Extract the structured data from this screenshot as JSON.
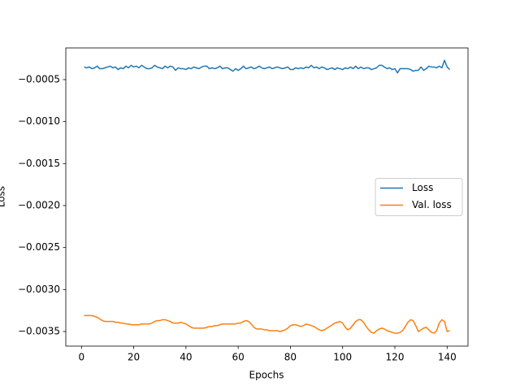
{
  "chart_data": {
    "type": "line",
    "xlabel": "Epochs",
    "ylabel": "Loss",
    "x": [
      1,
      2,
      3,
      4,
      5,
      6,
      7,
      8,
      9,
      10,
      11,
      12,
      13,
      14,
      15,
      16,
      17,
      18,
      19,
      20,
      21,
      22,
      23,
      24,
      25,
      26,
      27,
      28,
      29,
      30,
      31,
      32,
      33,
      34,
      35,
      36,
      37,
      38,
      39,
      40,
      41,
      42,
      43,
      44,
      45,
      46,
      47,
      48,
      49,
      50,
      51,
      52,
      53,
      54,
      55,
      56,
      57,
      58,
      59,
      60,
      61,
      62,
      63,
      64,
      65,
      66,
      67,
      68,
      69,
      70,
      71,
      72,
      73,
      74,
      75,
      76,
      77,
      78,
      79,
      80,
      81,
      82,
      83,
      84,
      85,
      86,
      87,
      88,
      89,
      90,
      91,
      92,
      93,
      94,
      95,
      96,
      97,
      98,
      99,
      100,
      101,
      102,
      103,
      104,
      105,
      106,
      107,
      108,
      109,
      110,
      111,
      112,
      113,
      114,
      115,
      116,
      117,
      118,
      119,
      120,
      121,
      122,
      123,
      124,
      125,
      126,
      127,
      128,
      129,
      130,
      131,
      132,
      133,
      134,
      135,
      136,
      137,
      138,
      139,
      140,
      141
    ],
    "series": [
      {
        "name": "Loss",
        "color": "#1f77b4",
        "values": [
          -0.00035,
          -0.00036,
          -0.00035,
          -0.00037,
          -0.00036,
          -0.00034,
          -0.00037,
          -0.00037,
          -0.00036,
          -0.00035,
          -0.00034,
          -0.00036,
          -0.00035,
          -0.00038,
          -0.00036,
          -0.00037,
          -0.00034,
          -0.00036,
          -0.00033,
          -0.00035,
          -0.00034,
          -0.00036,
          -0.00033,
          -0.00035,
          -0.00037,
          -0.00037,
          -0.00036,
          -0.00033,
          -0.00035,
          -0.00036,
          -0.00037,
          -0.00034,
          -0.00036,
          -0.00034,
          -0.00035,
          -0.00039,
          -0.00036,
          -0.00037,
          -0.00037,
          -0.00038,
          -0.00036,
          -0.00037,
          -0.00035,
          -0.00036,
          -0.00037,
          -0.00035,
          -0.00034,
          -0.00034,
          -0.00037,
          -0.00036,
          -0.00037,
          -0.00036,
          -0.00034,
          -0.00037,
          -0.00036,
          -0.00036,
          -0.00038,
          -0.0004,
          -0.00037,
          -0.00039,
          -0.00037,
          -0.00034,
          -0.00037,
          -0.00036,
          -0.00035,
          -0.00037,
          -0.00036,
          -0.00034,
          -0.00036,
          -0.00037,
          -0.00036,
          -0.00035,
          -0.00037,
          -0.00036,
          -0.00035,
          -0.00036,
          -0.00037,
          -0.00036,
          -0.00035,
          -0.00038,
          -0.00038,
          -0.00036,
          -0.00037,
          -0.00036,
          -0.00037,
          -0.00035,
          -0.00036,
          -0.00033,
          -0.00036,
          -0.00035,
          -0.00037,
          -0.00035,
          -0.00036,
          -0.00038,
          -0.00037,
          -0.00036,
          -0.00038,
          -0.00036,
          -0.00037,
          -0.00038,
          -0.00036,
          -0.00037,
          -0.00035,
          -0.00037,
          -0.00034,
          -0.00037,
          -0.00035,
          -0.00037,
          -0.00036,
          -0.00036,
          -0.00038,
          -0.00037,
          -0.00036,
          -0.00033,
          -0.00033,
          -0.00035,
          -0.00037,
          -0.00036,
          -0.00038,
          -0.00037,
          -0.00042,
          -0.00037,
          -0.00037,
          -0.00037,
          -0.00037,
          -0.00038,
          -0.0004,
          -0.00039,
          -0.00039,
          -0.00035,
          -0.00039,
          -0.00037,
          -0.00034,
          -0.00035,
          -0.00035,
          -0.00036,
          -0.00034,
          -0.00036,
          -0.00027,
          -0.00035,
          -0.00038
        ]
      },
      {
        "name": "Val. loss",
        "color": "#ff7f0e",
        "values": [
          -0.00331,
          -0.00331,
          -0.00331,
          -0.00331,
          -0.00332,
          -0.00333,
          -0.00335,
          -0.00337,
          -0.00338,
          -0.00338,
          -0.00338,
          -0.00338,
          -0.00339,
          -0.00339,
          -0.0034,
          -0.0034,
          -0.00341,
          -0.00341,
          -0.00342,
          -0.00342,
          -0.00342,
          -0.00342,
          -0.00341,
          -0.00341,
          -0.00341,
          -0.00341,
          -0.0034,
          -0.00338,
          -0.00337,
          -0.00337,
          -0.00336,
          -0.00336,
          -0.00337,
          -0.00338,
          -0.0034,
          -0.0034,
          -0.0034,
          -0.00339,
          -0.0034,
          -0.00341,
          -0.00343,
          -0.00345,
          -0.00346,
          -0.00346,
          -0.00346,
          -0.00346,
          -0.00346,
          -0.00345,
          -0.00344,
          -0.00344,
          -0.00343,
          -0.00343,
          -0.00342,
          -0.00341,
          -0.00341,
          -0.00341,
          -0.00341,
          -0.00341,
          -0.00341,
          -0.0034,
          -0.0034,
          -0.00338,
          -0.00337,
          -0.00338,
          -0.00341,
          -0.00345,
          -0.00347,
          -0.00347,
          -0.00347,
          -0.00348,
          -0.00348,
          -0.00349,
          -0.00349,
          -0.00349,
          -0.00349,
          -0.0035,
          -0.00349,
          -0.00348,
          -0.00346,
          -0.00343,
          -0.00342,
          -0.00342,
          -0.00343,
          -0.00344,
          -0.00343,
          -0.00341,
          -0.00342,
          -0.00343,
          -0.00344,
          -0.00346,
          -0.00348,
          -0.00349,
          -0.00348,
          -0.00346,
          -0.00344,
          -0.00342,
          -0.0034,
          -0.00339,
          -0.00338,
          -0.0034,
          -0.00345,
          -0.00348,
          -0.00346,
          -0.00342,
          -0.00338,
          -0.00336,
          -0.00336,
          -0.00339,
          -0.00344,
          -0.00348,
          -0.00351,
          -0.00352,
          -0.00349,
          -0.00347,
          -0.00346,
          -0.00347,
          -0.00349,
          -0.0035,
          -0.00351,
          -0.00352,
          -0.00352,
          -0.00351,
          -0.00349,
          -0.00344,
          -0.00339,
          -0.00336,
          -0.00337,
          -0.00343,
          -0.0035,
          -0.00348,
          -0.00346,
          -0.00345,
          -0.00348,
          -0.00351,
          -0.00352,
          -0.00349,
          -0.0034,
          -0.00336,
          -0.00338,
          -0.0035,
          -0.00349
        ]
      }
    ],
    "xlim": [
      -6,
      148
    ],
    "xticks": [
      0,
      20,
      40,
      60,
      80,
      100,
      120,
      140
    ],
    "ylim": [
      -0.003674,
      -0.000123
    ],
    "yticks": [
      {
        "value": -0.0035,
        "label": "−0.0035"
      },
      {
        "value": -0.003,
        "label": "−0.0030"
      },
      {
        "value": -0.0025,
        "label": "−0.0025"
      },
      {
        "value": -0.002,
        "label": "−0.0020"
      },
      {
        "value": -0.0015,
        "label": "−0.0015"
      },
      {
        "value": -0.001,
        "label": "−0.0010"
      },
      {
        "value": -0.0005,
        "label": "−0.0005"
      }
    ],
    "legend": "center right",
    "grid": false
  }
}
